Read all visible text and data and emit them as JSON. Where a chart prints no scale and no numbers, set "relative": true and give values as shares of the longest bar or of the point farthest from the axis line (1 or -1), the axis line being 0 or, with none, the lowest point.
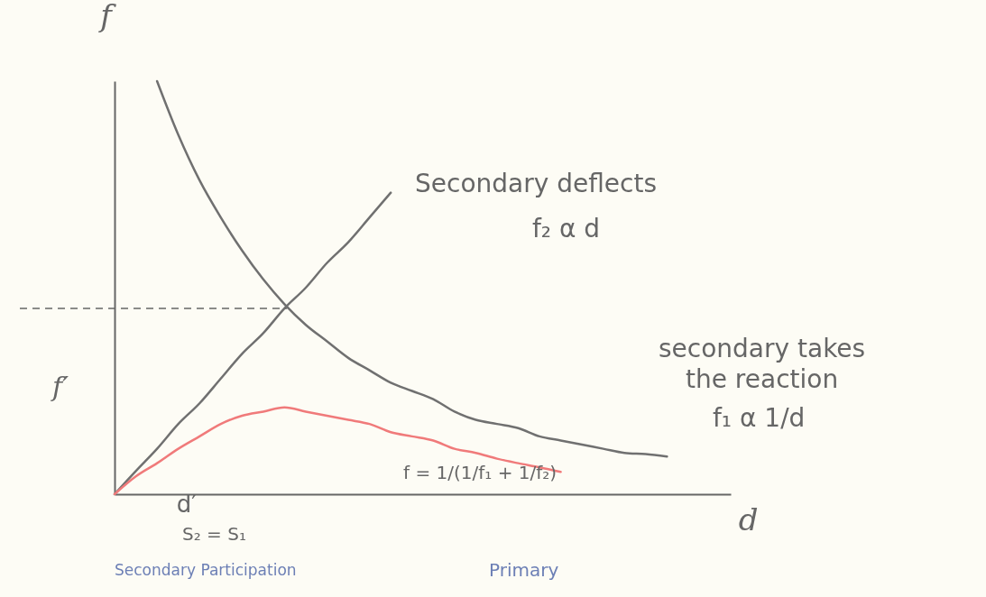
{
  "chart_data": {
    "type": "line",
    "relative": true,
    "xlabel": "d",
    "ylabel": "f",
    "categories": [
      null,
      null,
      null,
      null,
      null,
      null,
      null,
      null,
      null,
      null,
      null,
      null,
      null,
      null,
      null,
      null,
      null,
      null,
      null,
      null,
      null,
      null,
      null,
      null,
      null,
      null,
      null,
      null,
      null,
      null
    ],
    "series": [
      {
        "color": "#707070",
        "values": [
          null,
          null,
          1,
          0.87,
          0.76,
          0.67,
          0.59,
          0.52,
          0.46,
          0.41,
          0.37,
          0.33,
          0.3,
          0.27,
          0.25,
          0.23,
          0.2,
          0.18,
          0.17,
          0.16,
          0.14,
          0.13,
          0.12,
          0.11,
          0.1,
          0.097,
          0.091,
          null,
          null,
          null
        ]
      },
      {
        "color": "#707070",
        "values": [
          0,
          0.056,
          0.11,
          0.17,
          0.22,
          0.28,
          0.34,
          0.39,
          0.45,
          0.5,
          0.56,
          0.61,
          0.67,
          0.73,
          null,
          null,
          null,
          null,
          null,
          null,
          null,
          null,
          null,
          null,
          null,
          null,
          null,
          null,
          null,
          null
        ]
      },
      {
        "color": "#f07a7a",
        "values": [
          0,
          0.043,
          0.075,
          0.11,
          0.14,
          0.17,
          0.19,
          0.2,
          0.21,
          0.2,
          0.19,
          0.18,
          0.17,
          0.15,
          0.14,
          0.13,
          0.11,
          0.1,
          0.086,
          0.075,
          0.065,
          0.054,
          null,
          null,
          null,
          null,
          null,
          null,
          null,
          null
        ]
      }
    ],
    "ref_lines": [
      {
        "axis": "y",
        "value": 0.45,
        "label": "f′",
        "line_style": "dashed"
      }
    ],
    "annotations": [
      "Secondary deflects",
      "f₂ α d",
      "secondary takes",
      "the reaction",
      "f₁ α 1/d",
      "f = 1/(1/f₁ + 1/f₂)",
      "d′",
      "S₂ = S₁",
      "Secondary Participation",
      "Primary"
    ]
  }
}
